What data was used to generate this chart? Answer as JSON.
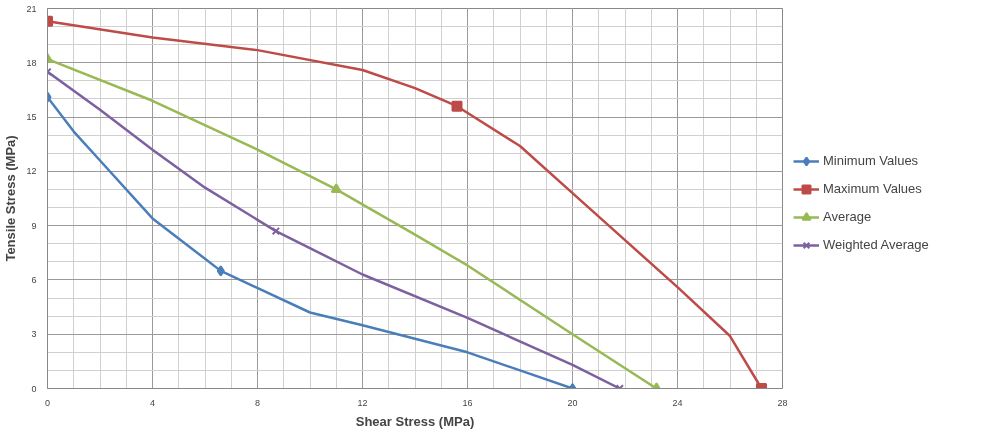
{
  "chart_data": {
    "type": "line",
    "xlabel": "Shear Stress (MPa)",
    "ylabel": "Tensile Stress (MPa)",
    "xlim": [
      0,
      28
    ],
    "xticks": [
      0,
      4,
      8,
      12,
      16,
      20,
      24,
      28
    ],
    "ylim": [
      0,
      21
    ],
    "yticks": [
      0,
      3,
      6,
      9,
      12,
      15,
      18,
      21
    ],
    "grid": true,
    "legend": "right",
    "line_style": "solid",
    "series": [
      {
        "name": "Minimum Values",
        "color": "#4a7ebb",
        "x": [
          0,
          1,
          2,
          4,
          6.6,
          10,
          12,
          16,
          20
        ],
        "values": [
          16.1,
          14.2,
          12.6,
          9.4,
          6.5,
          4.2,
          3.5,
          2.0,
          0
        ]
      },
      {
        "name": "Maximum Values",
        "color": "#be4b48",
        "x": [
          0,
          4,
          8,
          12,
          14,
          15.6,
          18,
          20,
          22,
          24,
          26,
          27.2
        ],
        "values": [
          20.3,
          19.4,
          18.7,
          17.6,
          16.6,
          15.6,
          13.4,
          10.8,
          8.2,
          5.6,
          2.9,
          0
        ]
      },
      {
        "name": "Average",
        "color": "#98b954",
        "x": [
          0,
          4,
          8,
          11,
          14,
          16,
          20,
          23.2
        ],
        "values": [
          18.2,
          15.9,
          13.2,
          11,
          8.5,
          6.8,
          3.0,
          0
        ]
      },
      {
        "name": "Weighted Average",
        "color": "#7d60a0",
        "x": [
          0,
          2,
          4,
          6,
          8.7,
          12,
          16,
          20,
          21.8
        ],
        "values": [
          17.5,
          15.4,
          13.2,
          11.1,
          8.7,
          6.3,
          3.9,
          1.3,
          0
        ]
      },
      {
        "type": "scatter",
        "color": "#4a7ebb",
        "marker": "diamond",
        "x": [
          0,
          6.6,
          20
        ],
        "values": [
          16.1,
          6.5,
          0
        ]
      },
      {
        "type": "scatter",
        "color": "#be4b48",
        "marker": "square",
        "x": [
          0,
          15.6,
          27.2
        ],
        "values": [
          20.3,
          15.6,
          0
        ]
      },
      {
        "type": "scatter",
        "color": "#98b954",
        "marker": "triangle",
        "x": [
          0,
          11,
          23.2
        ],
        "values": [
          18.2,
          11,
          0
        ]
      },
      {
        "type": "scatter",
        "color": "#7d60a0",
        "marker": "cross",
        "x": [
          0,
          8.7,
          21.8
        ],
        "values": [
          17.5,
          8.7,
          0
        ]
      }
    ]
  }
}
